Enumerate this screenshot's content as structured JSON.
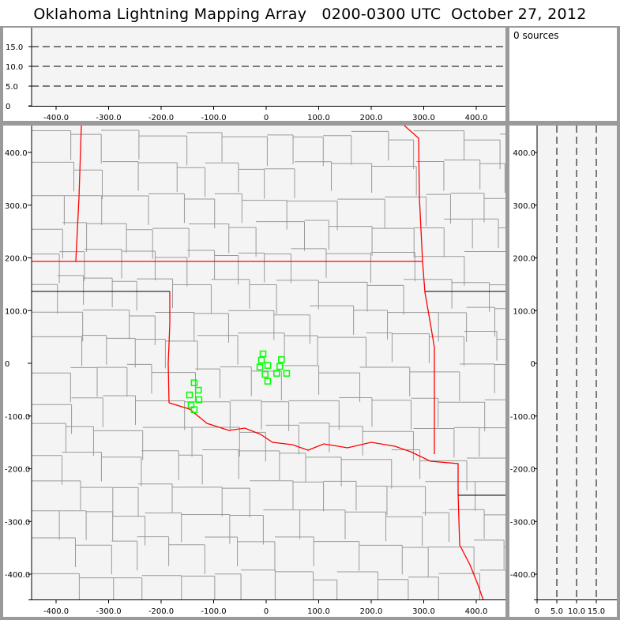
{
  "title": "Oklahoma Lightning Mapping Array   0200-0300 UTC  October 27, 2012",
  "source_count_label": "0 sources",
  "colors": {
    "state_border": "#ff0000",
    "county_line": "#999999",
    "points": "#00ff00",
    "plot_bg": "#f4f4f4",
    "frame": "#9a9a9a"
  },
  "chart_data": [
    {
      "type": "line",
      "name": "altitude-vs-east",
      "xlim": [
        -460,
        440
      ],
      "ylim": [
        0,
        20
      ],
      "xticks": [
        "-400.0",
        "-300.0",
        "-200.0",
        "-100.0",
        "0",
        "100.0",
        "200.0",
        "300.0",
        "400.0"
      ],
      "xtick_values": [
        -400,
        -300,
        -200,
        -100,
        0,
        100,
        200,
        300,
        400
      ],
      "yticks": [
        "0",
        "5.0",
        "10.0",
        "15.0"
      ],
      "ytick_values": [
        0,
        5,
        10,
        15
      ],
      "grid": "dashed at 5, 10, 15",
      "series": []
    },
    {
      "type": "scatter",
      "name": "plan-view",
      "xlim": [
        -460,
        440
      ],
      "ylim": [
        -450,
        450
      ],
      "xticks": [
        "-400.0",
        "-300.0",
        "-200.0",
        "-100.0",
        "0",
        "100.0",
        "200.0",
        "300.0",
        "400.0"
      ],
      "xtick_values": [
        -400,
        -300,
        -200,
        -100,
        0,
        100,
        200,
        300,
        400
      ],
      "yticks": [
        "400.0",
        "300.0",
        "200.0",
        "100.0",
        "0",
        "-100.0",
        "-200.0",
        "-300.0",
        "-400.0"
      ],
      "ytick_values": [
        400,
        300,
        200,
        100,
        0,
        -100,
        -200,
        -300,
        -400
      ],
      "points": [
        [
          -6,
          18
        ],
        [
          -9,
          6
        ],
        [
          29,
          7
        ],
        [
          -12,
          -7
        ],
        [
          3,
          -4
        ],
        [
          26,
          -6
        ],
        [
          -2,
          -21
        ],
        [
          20,
          -19
        ],
        [
          39,
          -19
        ],
        [
          3,
          -34
        ],
        [
          -137,
          -37
        ],
        [
          -129,
          -51
        ],
        [
          -146,
          -60
        ],
        [
          -128,
          -69
        ],
        [
          -143,
          -79
        ],
        [
          -137,
          -88
        ]
      ],
      "marker": "open square"
    },
    {
      "type": "line",
      "name": "north-vs-altitude",
      "xlim": [
        0,
        20
      ],
      "ylim": [
        -450,
        450
      ],
      "xticks": [
        "0",
        "5.0",
        "10.0",
        "15.0"
      ],
      "xtick_values": [
        0,
        5,
        10,
        15
      ],
      "grid": "dashed at 5, 10, 15",
      "series": []
    }
  ]
}
